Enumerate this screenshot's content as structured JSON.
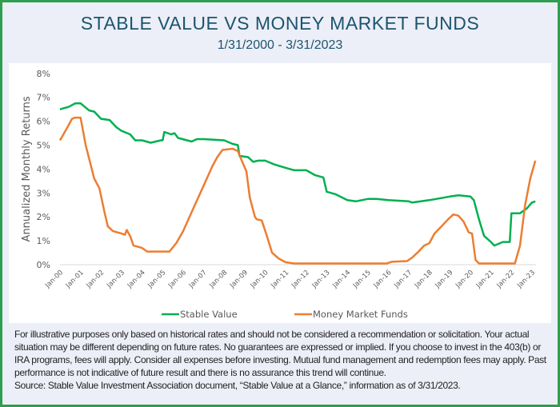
{
  "header": {
    "title": "STABLE VALUE VS MONEY MARKET FUNDS",
    "subtitle": "1/31/2000 - 3/31/2023"
  },
  "chart_data": {
    "type": "line",
    "title": "STABLE VALUE VS MONEY MARKET FUNDS",
    "subtitle": "1/31/2000 - 3/31/2023",
    "xlabel": "",
    "ylabel": "Annualized Monthly Returns",
    "ylim": [
      0,
      8
    ],
    "y_ticks": [
      "0%",
      "1%",
      "2%",
      "3%",
      "4%",
      "5%",
      "6%",
      "7%",
      "8%"
    ],
    "x_ticks": [
      "Jan-00",
      "Jan-01",
      "Jan-02",
      "Jan-03",
      "Jan-04",
      "Jan-05",
      "Jan-06",
      "Jan-07",
      "Jan-08",
      "Jan-09",
      "Jan-10",
      "Jan-11",
      "Jan-12",
      "Jan-13",
      "Jan-14",
      "Jan-15",
      "Jan-16",
      "Jan-17",
      "Jan-18",
      "Jan-19",
      "Jan-20",
      "Jan-21",
      "Jan-22",
      "Jan-23"
    ],
    "grid": false,
    "legend": "bottom",
    "series": [
      {
        "name": "Stable Value",
        "color": "#00b050",
        "points": [
          [
            "2000-01",
            6.5
          ],
          [
            "2000-06",
            6.6
          ],
          [
            "2000-10",
            6.75
          ],
          [
            "2001-01",
            6.75
          ],
          [
            "2001-06",
            6.45
          ],
          [
            "2001-09",
            6.4
          ],
          [
            "2002-01",
            6.1
          ],
          [
            "2002-06",
            6.05
          ],
          [
            "2002-10",
            5.75
          ],
          [
            "2003-01",
            5.6
          ],
          [
            "2003-06",
            5.45
          ],
          [
            "2003-09",
            5.2
          ],
          [
            "2004-01",
            5.2
          ],
          [
            "2004-06",
            5.1
          ],
          [
            "2004-12",
            5.2
          ],
          [
            "2005-01",
            5.2
          ],
          [
            "2005-02",
            5.55
          ],
          [
            "2005-06",
            5.45
          ],
          [
            "2005-08",
            5.5
          ],
          [
            "2005-10",
            5.3
          ],
          [
            "2006-06",
            5.15
          ],
          [
            "2006-09",
            5.25
          ],
          [
            "2007-01",
            5.25
          ],
          [
            "2008-01",
            5.2
          ],
          [
            "2008-06",
            5.05
          ],
          [
            "2008-09",
            5.0
          ],
          [
            "2008-10",
            4.55
          ],
          [
            "2009-03",
            4.5
          ],
          [
            "2009-06",
            4.3
          ],
          [
            "2009-09",
            4.35
          ],
          [
            "2010-01",
            4.35
          ],
          [
            "2010-06",
            4.2
          ],
          [
            "2011-01",
            4.05
          ],
          [
            "2011-06",
            3.95
          ],
          [
            "2012-01",
            3.95
          ],
          [
            "2012-06",
            3.75
          ],
          [
            "2012-11",
            3.65
          ],
          [
            "2013-01",
            3.05
          ],
          [
            "2013-06",
            2.95
          ],
          [
            "2014-01",
            2.7
          ],
          [
            "2014-06",
            2.65
          ],
          [
            "2015-01",
            2.75
          ],
          [
            "2015-06",
            2.75
          ],
          [
            "2016-01",
            2.7
          ],
          [
            "2017-01",
            2.65
          ],
          [
            "2017-03",
            2.6
          ],
          [
            "2018-01",
            2.7
          ],
          [
            "2019-01",
            2.85
          ],
          [
            "2019-06",
            2.9
          ],
          [
            "2020-01",
            2.85
          ],
          [
            "2020-03",
            2.7
          ],
          [
            "2020-06",
            1.9
          ],
          [
            "2020-09",
            1.2
          ],
          [
            "2021-01",
            0.95
          ],
          [
            "2021-03",
            0.8
          ],
          [
            "2021-08",
            0.95
          ],
          [
            "2021-12",
            0.95
          ],
          [
            "2022-01",
            2.15
          ],
          [
            "2022-06",
            2.15
          ],
          [
            "2022-10",
            2.35
          ],
          [
            "2023-01",
            2.6
          ],
          [
            "2023-03",
            2.65
          ]
        ]
      },
      {
        "name": "Money Market Funds",
        "color": "#ed7d31",
        "points": [
          [
            "2000-01",
            5.2
          ],
          [
            "2000-05",
            5.7
          ],
          [
            "2000-08",
            6.1
          ],
          [
            "2000-10",
            6.15
          ],
          [
            "2001-01",
            6.15
          ],
          [
            "2001-04",
            5.0
          ],
          [
            "2001-09",
            3.6
          ],
          [
            "2001-12",
            3.2
          ],
          [
            "2002-03",
            2.2
          ],
          [
            "2002-05",
            1.6
          ],
          [
            "2002-08",
            1.4
          ],
          [
            "2003-01",
            1.3
          ],
          [
            "2003-03",
            1.25
          ],
          [
            "2003-04",
            1.45
          ],
          [
            "2003-06",
            1.2
          ],
          [
            "2003-08",
            0.8
          ],
          [
            "2004-01",
            0.7
          ],
          [
            "2004-04",
            0.55
          ],
          [
            "2005-01",
            0.55
          ],
          [
            "2005-05",
            0.55
          ],
          [
            "2005-09",
            0.9
          ],
          [
            "2006-01",
            1.4
          ],
          [
            "2006-06",
            2.2
          ],
          [
            "2007-01",
            3.3
          ],
          [
            "2007-06",
            4.1
          ],
          [
            "2007-09",
            4.5
          ],
          [
            "2007-12",
            4.8
          ],
          [
            "2008-06",
            4.85
          ],
          [
            "2008-09",
            4.75
          ],
          [
            "2008-11",
            4.4
          ],
          [
            "2009-02",
            3.9
          ],
          [
            "2009-04",
            2.8
          ],
          [
            "2009-07",
            2.0
          ],
          [
            "2009-08",
            1.9
          ],
          [
            "2009-11",
            1.85
          ],
          [
            "2010-02",
            1.2
          ],
          [
            "2010-05",
            0.5
          ],
          [
            "2010-09",
            0.25
          ],
          [
            "2011-01",
            0.1
          ],
          [
            "2011-06",
            0.05
          ],
          [
            "2015-12",
            0.05
          ],
          [
            "2016-03",
            0.12
          ],
          [
            "2016-12",
            0.15
          ],
          [
            "2017-03",
            0.3
          ],
          [
            "2017-06",
            0.5
          ],
          [
            "2017-10",
            0.8
          ],
          [
            "2018-01",
            0.9
          ],
          [
            "2018-04",
            1.3
          ],
          [
            "2018-08",
            1.6
          ],
          [
            "2018-12",
            1.9
          ],
          [
            "2019-03",
            2.1
          ],
          [
            "2019-06",
            2.05
          ],
          [
            "2019-09",
            1.8
          ],
          [
            "2019-12",
            1.35
          ],
          [
            "2020-02",
            1.3
          ],
          [
            "2020-04",
            0.2
          ],
          [
            "2020-06",
            0.05
          ],
          [
            "2022-03",
            0.05
          ],
          [
            "2022-06",
            0.8
          ],
          [
            "2022-09",
            2.5
          ],
          [
            "2022-12",
            3.6
          ],
          [
            "2023-03",
            4.35
          ]
        ]
      }
    ]
  },
  "footer": {
    "lines": [
      "For illustrative purposes only based on historical rates and should not be considered a recommendation or solicitation. Your actual",
      "situation may be different depending on future rates. No guarantees are expressed or implied. If you choose to invest in the 403(b) or",
      "IRA programs, fees will apply. Consider all expenses before investing. Mutual fund management and redemption fees may apply. Past",
      "performance is not indicative of future result and there is no assurance this trend will continue.",
      "Source: Stable Value Investment Association document, “Stable Value at a Glance,” information as of 3/31/2023."
    ]
  }
}
